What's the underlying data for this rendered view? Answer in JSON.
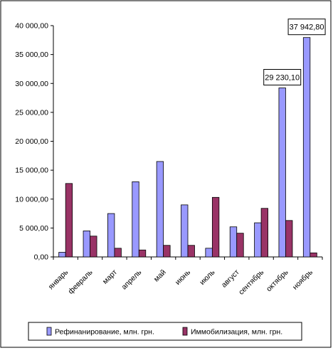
{
  "chart_data": {
    "type": "bar",
    "categories": [
      "январь",
      "февраль",
      "март",
      "апрель",
      "май",
      "июнь",
      "июль",
      "август",
      "сентябрь",
      "октябрь",
      "ноябрь"
    ],
    "series": [
      {
        "name": "Рефинанирование, млн. грн.",
        "color": "#9999ff",
        "values": [
          800,
          4500,
          7500,
          13000,
          16500,
          9000,
          1500,
          5200,
          5900,
          29230.1,
          37942.8
        ]
      },
      {
        "name": "Иммобилизация, млн. грн.",
        "color": "#993366",
        "values": [
          12700,
          3600,
          1500,
          1200,
          2000,
          2000,
          10300,
          4100,
          8400,
          6300,
          700
        ]
      }
    ],
    "data_labels": [
      {
        "series": 0,
        "index": 9,
        "text": "29 230,10"
      },
      {
        "series": 0,
        "index": 10,
        "text": "37 942,80"
      }
    ],
    "yticks": [
      "0,00",
      "5 000,00",
      "10 000,00",
      "15 000,00",
      "20 000,00",
      "25 000,00",
      "30 000,00",
      "35 000,00",
      "40 000,00"
    ],
    "ylim": [
      0,
      40000
    ],
    "ytick_step": 5000,
    "grid": false,
    "legend_position": "bottom"
  }
}
